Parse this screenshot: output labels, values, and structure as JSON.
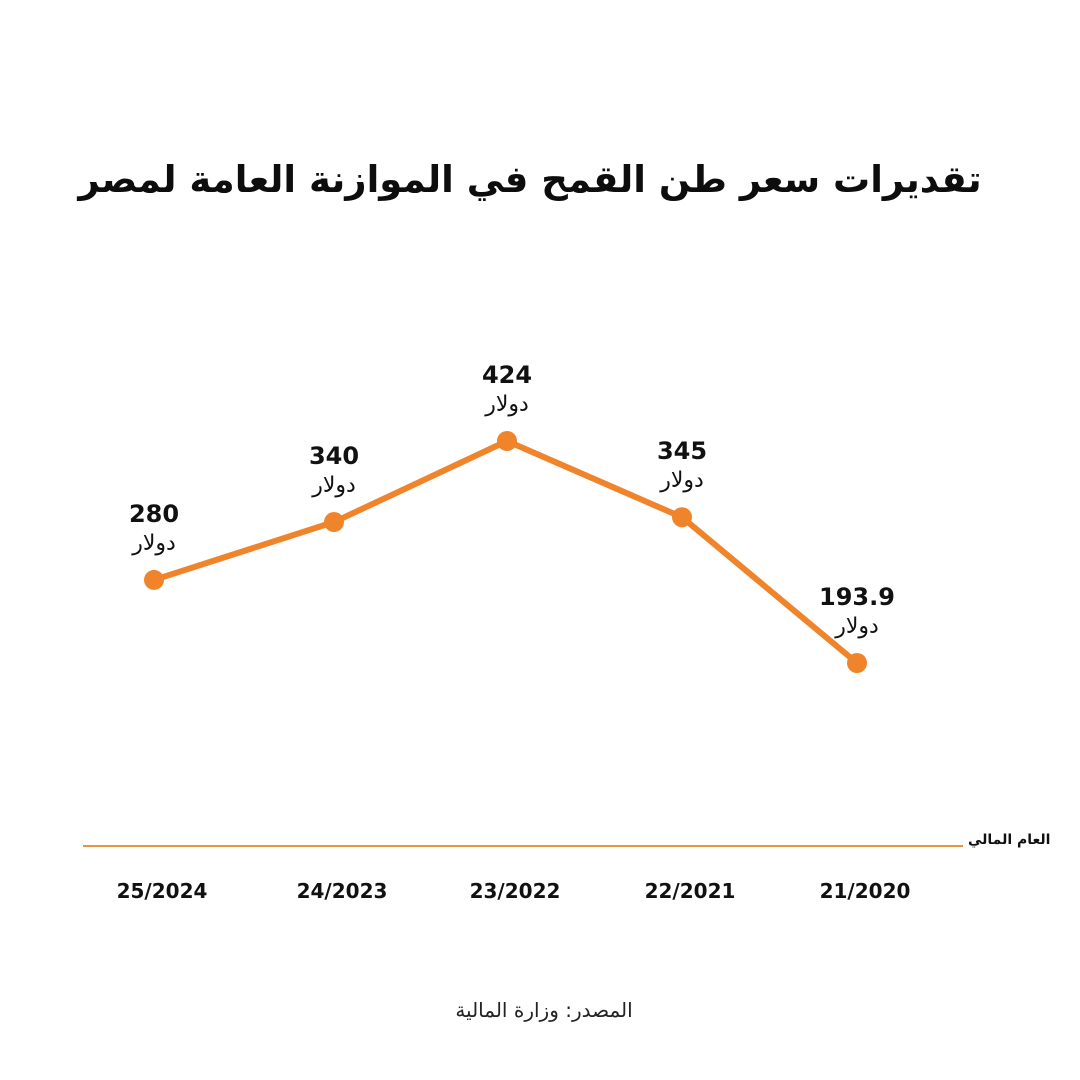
{
  "title": "تقديرات سعر طن القمح في الموازنة العامة لمصر",
  "axis_title": "العام المالي",
  "source": "المصدر: وزارة المالية",
  "colors": {
    "line": "#F0842A",
    "axis": "#E8963E",
    "text": "#111111"
  },
  "chart_data": {
    "type": "line",
    "title": "تقديرات سعر طن القمح في الموازنة العامة لمصر",
    "xlabel": "العام المالي",
    "ylabel": "",
    "categories": [
      "25/2024",
      "24/2023",
      "23/2022",
      "22/2021",
      "21/2020"
    ],
    "values": [
      280,
      340,
      424,
      345,
      193.9
    ],
    "value_labels": [
      "280",
      "340",
      "424",
      "345",
      "193.9"
    ],
    "unit": "دولار",
    "ylim": [
      80,
      460
    ],
    "grid": false,
    "legend": "none"
  }
}
